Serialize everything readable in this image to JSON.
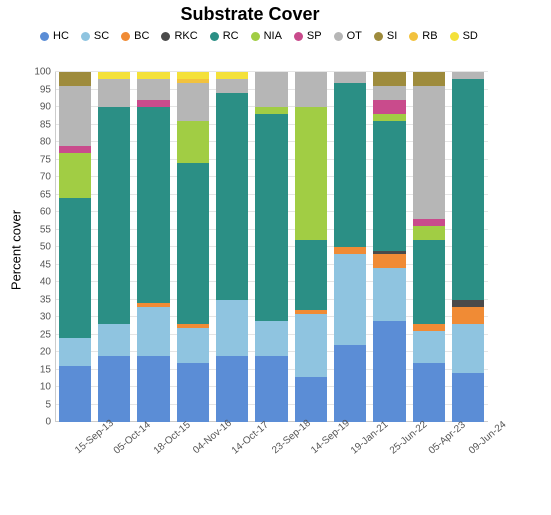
{
  "chart": {
    "type": "stacked-bar",
    "title": "Substrate Cover",
    "title_fontsize": 18,
    "title_weight": "bold",
    "ylabel": "Percent cover",
    "ylabel_fontsize": 13,
    "ylim": [
      0,
      100
    ],
    "ytick_step": 5,
    "background_color": "#ffffff",
    "grid_color": "#e5e5e5",
    "axis_color": "#cccccc",
    "bar_width_ratio": 0.82,
    "series": [
      {
        "key": "HC",
        "label": "HC",
        "color": "#5b8dd6"
      },
      {
        "key": "SC",
        "label": "SC",
        "color": "#8fc4e0"
      },
      {
        "key": "BC",
        "label": "BC",
        "color": "#f08b35"
      },
      {
        "key": "RKC",
        "label": "RKC",
        "color": "#4a4a4a"
      },
      {
        "key": "RC",
        "label": "RC",
        "color": "#2b8f85"
      },
      {
        "key": "NIA",
        "label": "NIA",
        "color": "#a1cd44"
      },
      {
        "key": "SP",
        "label": "SP",
        "color": "#c94b8c"
      },
      {
        "key": "OT",
        "label": "OT",
        "color": "#b6b6b6"
      },
      {
        "key": "SI",
        "label": "SI",
        "color": "#9e8b3c"
      },
      {
        "key": "RB",
        "label": "RB",
        "color": "#f2c23e"
      },
      {
        "key": "SD",
        "label": "SD",
        "color": "#f4e13a"
      }
    ],
    "categories": [
      "15-Sep-13",
      "05-Oct-14",
      "18-Oct-15",
      "04-Nov-16",
      "14-Oct-17",
      "23-Sep-18",
      "14-Sep-19",
      "19-Jan-21",
      "25-Jun-22",
      "05-Apr-23",
      "09-Jun-24"
    ],
    "data": [
      {
        "HC": 16,
        "SC": 8,
        "BC": 0,
        "RKC": 0,
        "RC": 40,
        "NIA": 13,
        "SP": 2,
        "OT": 17,
        "SI": 4,
        "RB": 0,
        "SD": 0
      },
      {
        "HC": 19,
        "SC": 9,
        "BC": 0,
        "RKC": 0,
        "RC": 62,
        "NIA": 0,
        "SP": 0,
        "OT": 8,
        "SI": 0,
        "RB": 0,
        "SD": 2
      },
      {
        "HC": 19,
        "SC": 14,
        "BC": 1,
        "RKC": 0,
        "RC": 56,
        "NIA": 0,
        "SP": 2,
        "OT": 6,
        "SI": 0,
        "RB": 0,
        "SD": 2
      },
      {
        "HC": 17,
        "SC": 10,
        "BC": 1,
        "RKC": 0,
        "RC": 46,
        "NIA": 12,
        "SP": 0,
        "OT": 11,
        "SI": 0,
        "RB": 1,
        "SD": 2
      },
      {
        "HC": 19,
        "SC": 16,
        "BC": 0,
        "RKC": 0,
        "RC": 59,
        "NIA": 0,
        "SP": 0,
        "OT": 4,
        "SI": 0,
        "RB": 0,
        "SD": 2
      },
      {
        "HC": 19,
        "SC": 10,
        "BC": 0,
        "RKC": 0,
        "RC": 59,
        "NIA": 2,
        "SP": 0,
        "OT": 10,
        "SI": 0,
        "RB": 0,
        "SD": 0
      },
      {
        "HC": 13,
        "SC": 18,
        "BC": 1,
        "RKC": 0,
        "RC": 20,
        "NIA": 38,
        "SP": 0,
        "OT": 10,
        "SI": 0,
        "RB": 0,
        "SD": 0
      },
      {
        "HC": 22,
        "SC": 26,
        "BC": 2,
        "RKC": 0,
        "RC": 47,
        "NIA": 0,
        "SP": 0,
        "OT": 3,
        "SI": 0,
        "RB": 0,
        "SD": 0
      },
      {
        "HC": 29,
        "SC": 15,
        "BC": 4,
        "RKC": 1,
        "RC": 37,
        "NIA": 2,
        "SP": 4,
        "OT": 4,
        "SI": 4,
        "RB": 0,
        "SD": 0
      },
      {
        "HC": 17,
        "SC": 9,
        "BC": 2,
        "RKC": 0,
        "RC": 24,
        "NIA": 4,
        "SP": 2,
        "OT": 38,
        "SI": 4,
        "RB": 0,
        "SD": 0
      },
      {
        "HC": 14,
        "SC": 14,
        "BC": 5,
        "RKC": 2,
        "RC": 63,
        "NIA": 0,
        "SP": 0,
        "OT": 2,
        "SI": 0,
        "RB": 0,
        "SD": 0
      }
    ],
    "tick_fontsize": 10,
    "tick_color": "#555555",
    "legend_fontsize": 11,
    "legend_marker_radius": 4.5
  }
}
